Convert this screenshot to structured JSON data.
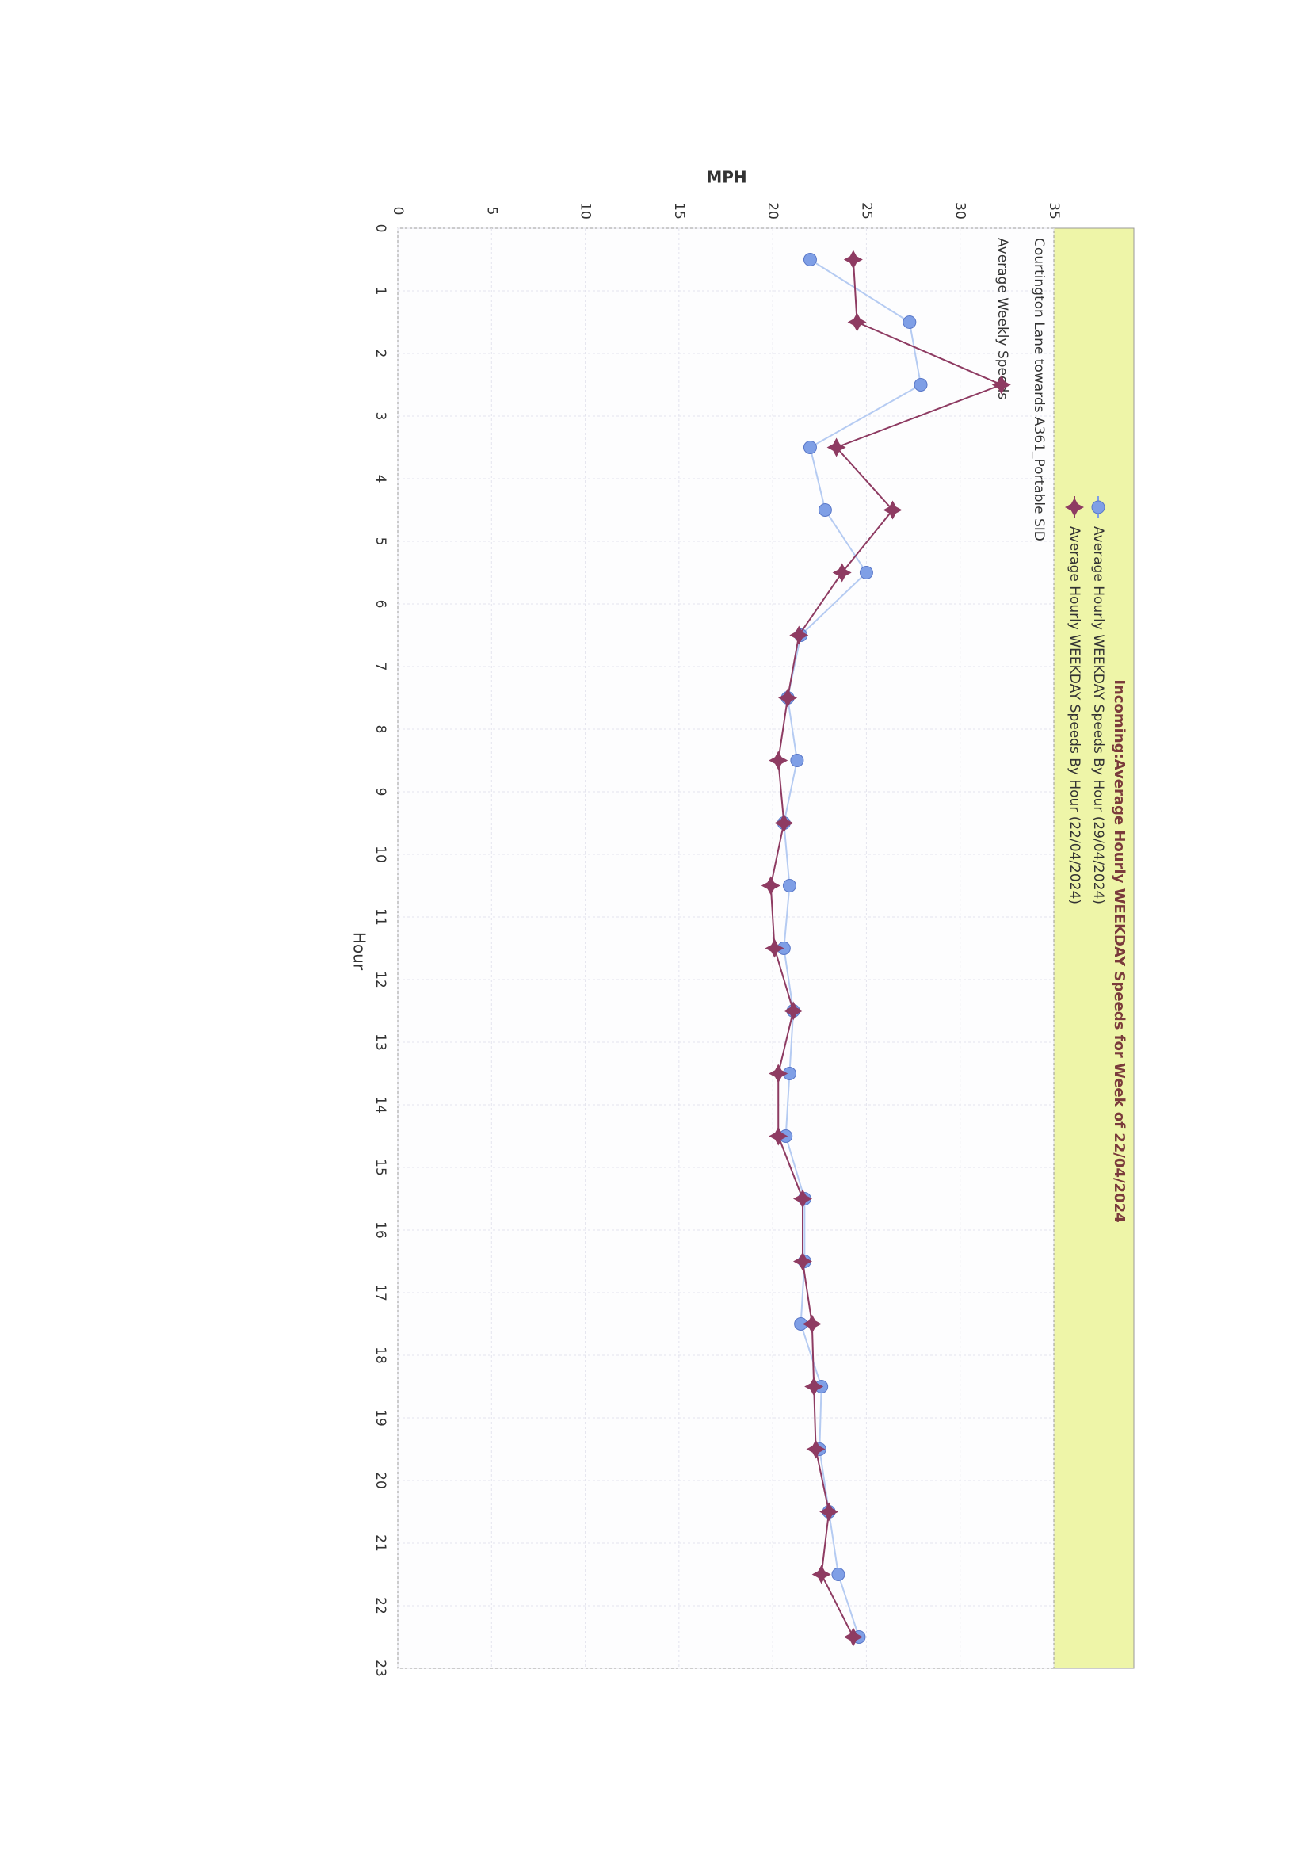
{
  "chart_data": {
    "type": "line",
    "title": "Incoming:Average Hourly WEEKDAY Speeds for Week of 22/04/2024",
    "annotations": [
      "Courtington Lane towards A361_Portable SID",
      "Average Weekly Speeds"
    ],
    "x_label": "Hour",
    "y_label": "MPH",
    "x": [
      0.5,
      1.5,
      2.5,
      3.5,
      4.5,
      5.5,
      6.5,
      7.5,
      8.5,
      9.5,
      10.5,
      11.5,
      12.5,
      13.5,
      14.5,
      15.5,
      16.5,
      17.5,
      18.5,
      19.5,
      20.5,
      21.5,
      22.5
    ],
    "series": [
      {
        "name": "Average Hourly WEEKDAY Speeds By Hour (29/04/2024)",
        "color": "#7f9fe6",
        "marker": "circle",
        "values": [
          22.0,
          27.3,
          27.9,
          22.0,
          22.8,
          25.0,
          21.5,
          20.8,
          21.3,
          20.6,
          20.9,
          20.6,
          21.1,
          20.9,
          20.7,
          21.7,
          21.7,
          21.5,
          22.6,
          22.5,
          23.0,
          23.5,
          24.6
        ]
      },
      {
        "name": "Average Hourly WEEKDAY Speeds By Hour (22/04/2024)",
        "color": "#8e3b62",
        "marker": "star",
        "values": [
          24.3,
          24.5,
          32.2,
          23.4,
          26.4,
          23.7,
          21.4,
          20.8,
          20.3,
          20.6,
          19.9,
          20.1,
          21.1,
          20.3,
          20.3,
          21.6,
          21.6,
          22.1,
          22.2,
          22.3,
          23.0,
          22.6,
          24.3
        ]
      }
    ],
    "xlim": [
      0,
      23
    ],
    "xticks": [
      0,
      1,
      2,
      3,
      4,
      5,
      6,
      7,
      8,
      9,
      10,
      11,
      12,
      13,
      14,
      15,
      16,
      17,
      18,
      19,
      20,
      21,
      22,
      23
    ],
    "ylim": [
      0,
      35
    ],
    "yticks": [
      0,
      5,
      10,
      15,
      20,
      25,
      30,
      35
    ],
    "grid": true,
    "legend_color": "#eef5a8"
  }
}
